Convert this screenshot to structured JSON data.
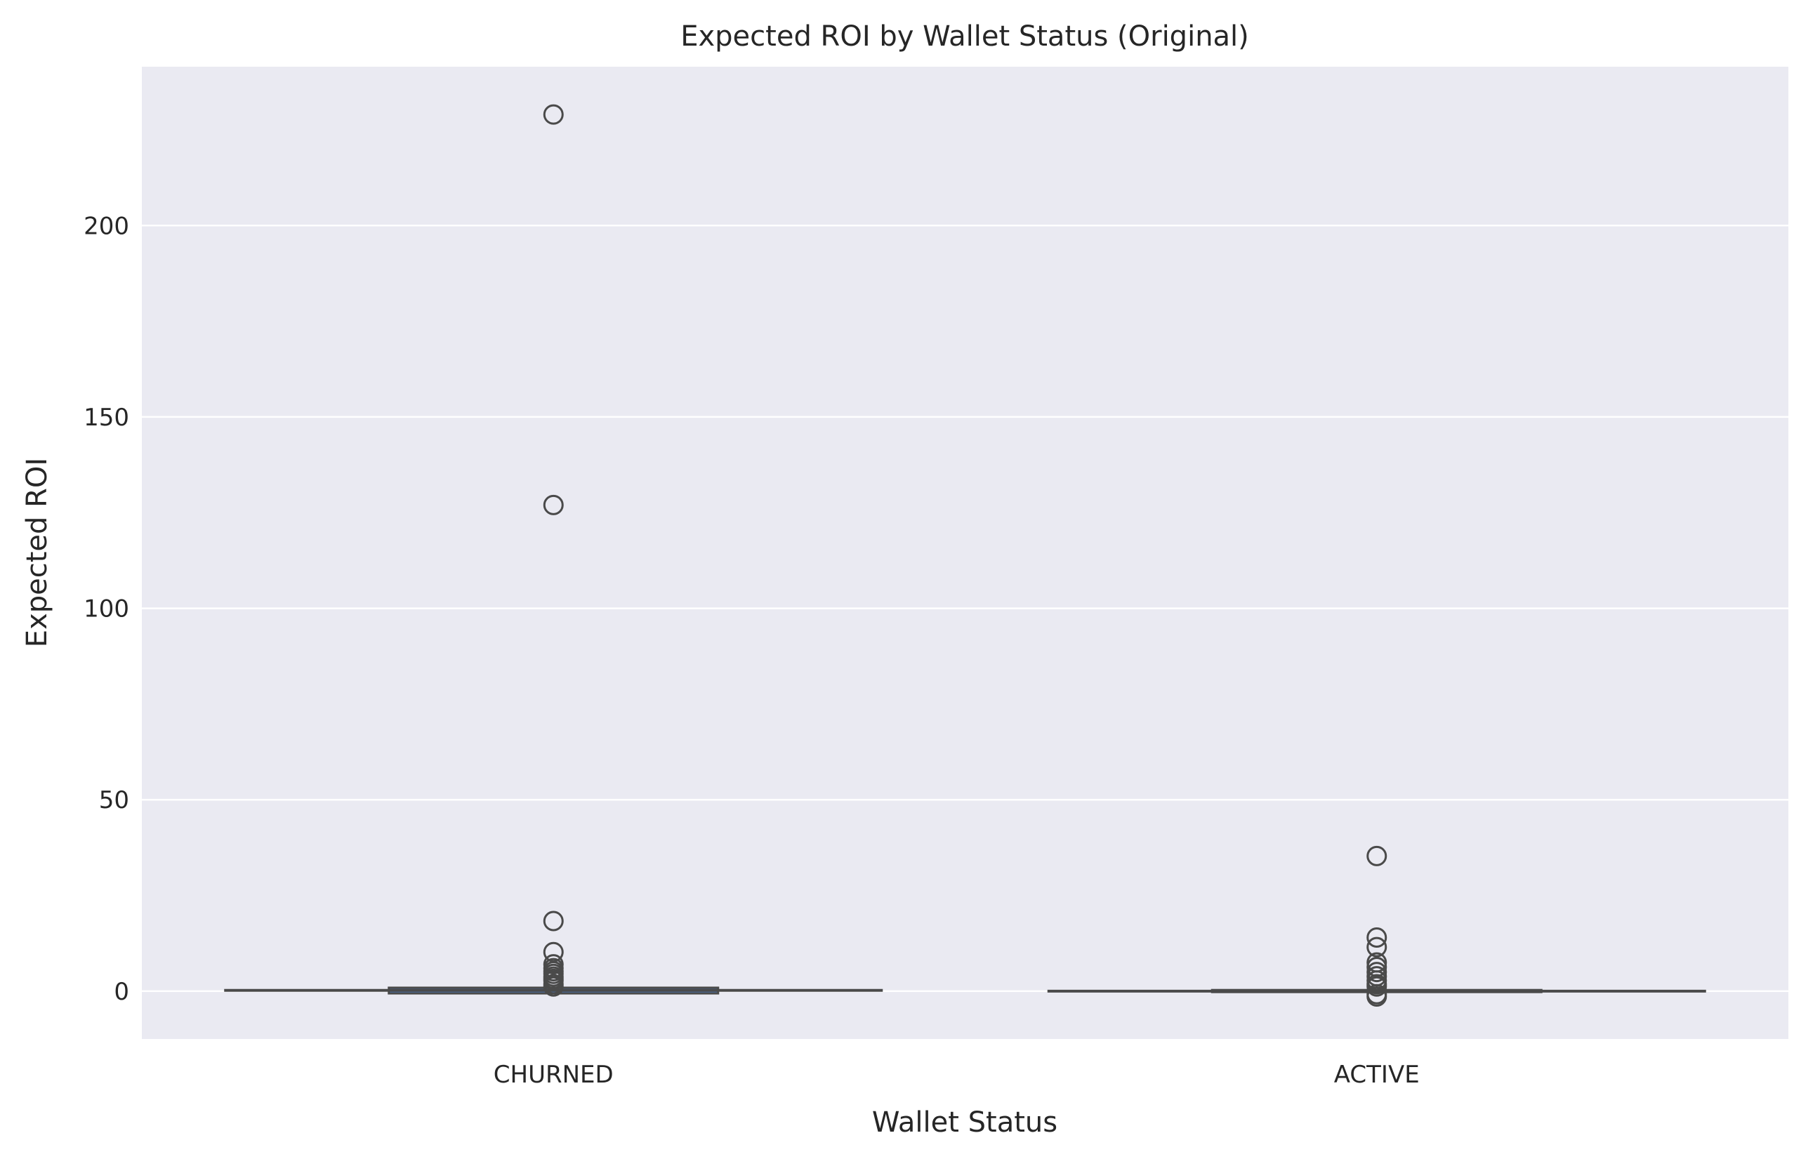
{
  "chart_data": {
    "type": "box",
    "title": "Expected ROI by Wallet Status (Original)",
    "xlabel": "Wallet Status",
    "ylabel": "Expected ROI",
    "ylim": [
      -12.5,
      241.5
    ],
    "yticks": [
      0,
      50,
      100,
      150,
      200
    ],
    "grid": true,
    "categories": [
      "CHURNED",
      "ACTIVE"
    ],
    "boxes": [
      {
        "category": "CHURNED",
        "whisker_low": -0.8,
        "q1": -0.6,
        "median": 0.2,
        "q3": 0.9,
        "whisker_high": 0.9,
        "outliers": [
          229,
          127,
          18.3,
          10.2,
          7.0,
          6.0,
          5.2,
          4.5,
          3.8,
          3.2,
          2.7,
          1.8,
          1.2
        ]
      },
      {
        "category": "ACTIVE",
        "whisker_low": -0.3,
        "q1": -0.2,
        "median": 0.0,
        "q3": 0.3,
        "whisker_high": 0.3,
        "outliers": [
          35.3,
          14.0,
          11.5,
          7.5,
          6.3,
          5.0,
          3.9,
          2.8,
          1.8,
          1.2,
          -0.8,
          -1.4
        ]
      }
    ],
    "colors": {
      "background": "#eaeaf2",
      "grid": "#ffffff",
      "box_line": "#4a4a4a"
    }
  }
}
